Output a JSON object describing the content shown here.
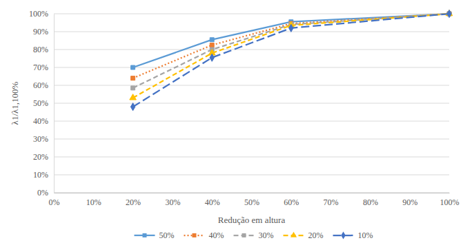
{
  "chart_data": {
    "type": "line",
    "x_label": "Redução em altura",
    "y_label": "λ1/λ1,100%",
    "x": [
      20,
      40,
      60,
      100
    ],
    "xlim": [
      0,
      100
    ],
    "xticks": [
      {
        "value": 0,
        "label": "0%"
      },
      {
        "value": 10,
        "label": "10%"
      },
      {
        "value": 20,
        "label": "20%"
      },
      {
        "value": 30,
        "label": "30%"
      },
      {
        "value": 40,
        "label": "40%"
      },
      {
        "value": 50,
        "label": "50%"
      },
      {
        "value": 60,
        "label": "60%"
      },
      {
        "value": 70,
        "label": "70%"
      },
      {
        "value": 80,
        "label": "80%"
      },
      {
        "value": 90,
        "label": "90%"
      },
      {
        "value": 100,
        "label": "100%"
      }
    ],
    "ylim": [
      0,
      100
    ],
    "yticks": [
      {
        "value": 0,
        "label": "0%"
      },
      {
        "value": 10,
        "label": "10%"
      },
      {
        "value": 20,
        "label": "20%"
      },
      {
        "value": 30,
        "label": "30%"
      },
      {
        "value": 40,
        "label": "40%"
      },
      {
        "value": 50,
        "label": "50%"
      },
      {
        "value": 60,
        "label": "60%"
      },
      {
        "value": 70,
        "label": "70%"
      },
      {
        "value": 80,
        "label": "80%"
      },
      {
        "value": 90,
        "label": "90%"
      },
      {
        "value": 100,
        "label": "100%"
      }
    ],
    "grid": true,
    "legend": "bottom",
    "series": [
      {
        "name": "50%",
        "color": "#5b9bd5",
        "marker": "square",
        "line_style": "solid",
        "values": [
          70,
          85.5,
          95.5,
          100
        ]
      },
      {
        "name": "40%",
        "color": "#ed7d31",
        "marker": "square",
        "line_style": "dotted",
        "values": [
          64,
          82.5,
          94.5,
          100
        ]
      },
      {
        "name": "30%",
        "color": "#a5a5a5",
        "marker": "square",
        "line_style": "dashed",
        "values": [
          58.5,
          80,
          94,
          100
        ]
      },
      {
        "name": "20%",
        "color": "#ffc000",
        "marker": "triangle",
        "line_style": "dashed",
        "values": [
          53,
          78,
          93.5,
          100
        ]
      },
      {
        "name": "10%",
        "color": "#4472c4",
        "marker": "diamond",
        "line_style": "longdash",
        "values": [
          48,
          75.5,
          92,
          100
        ]
      }
    ]
  }
}
